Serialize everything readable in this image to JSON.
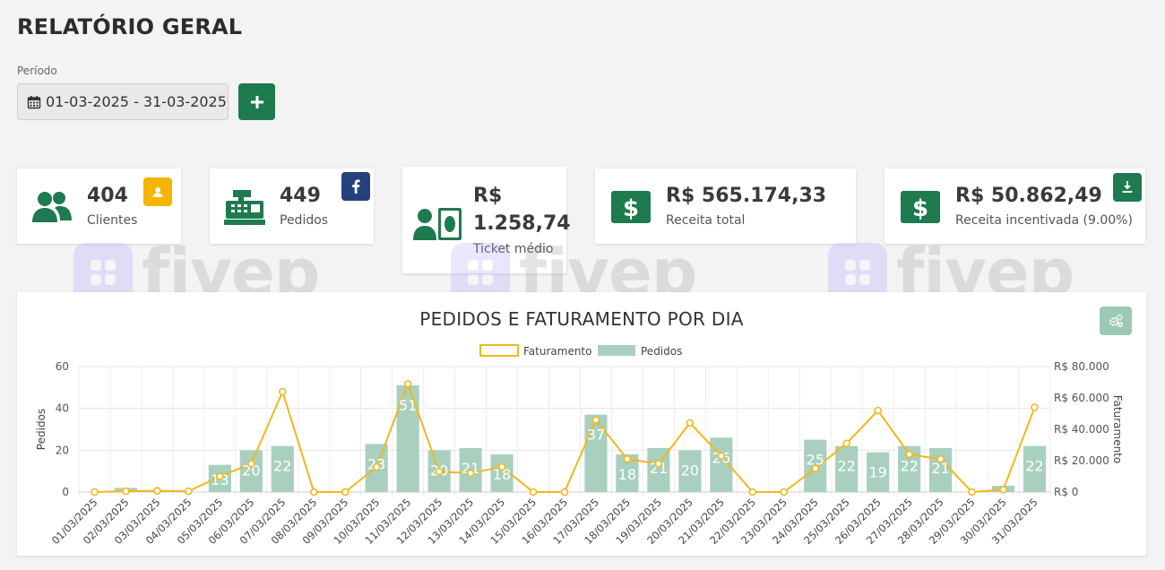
{
  "header": {
    "title": "RELATÓRIO GERAL"
  },
  "filters": {
    "period_label": "Período",
    "period_value": "01-03-2025 - 31-03-2025",
    "add_icon": "plus-icon"
  },
  "cards": {
    "clientes": {
      "value": "404",
      "label": "Clientes",
      "icon": "users-icon",
      "badge_icon": "user-badge-icon",
      "badge_color": "#f5b400"
    },
    "pedidos": {
      "value": "449",
      "label": "Pedidos",
      "icon": "cash-register-icon",
      "badge_icon": "facebook-icon",
      "badge_color": "#25407d"
    },
    "ticket": {
      "value_line1": "R$",
      "value_line2": "1.258,74",
      "label": "Ticket médio",
      "icon": "user-money-icon"
    },
    "receita_total": {
      "value": "R$ 565.174,33",
      "label": "Receita total",
      "icon": "dollar-icon"
    },
    "receita_incentivada": {
      "value": "R$ 50.862,49",
      "label": "Receita incentivada (9.00%)",
      "icon": "dollar-icon",
      "badge_icon": "download-icon"
    }
  },
  "watermark": {
    "text": "fivep"
  },
  "colors": {
    "primary": "#1e7a4f",
    "bar": "#a9d0be",
    "line": "#f0b81c"
  },
  "chart_data": {
    "type": "bar",
    "title": "PEDIDOS E FATURAMENTO POR DIA",
    "legend_position": "top",
    "grid": true,
    "categories": [
      "01/03/2025",
      "02/03/2025",
      "03/03/2025",
      "04/03/2025",
      "05/03/2025",
      "06/03/2025",
      "07/03/2025",
      "08/03/2025",
      "09/03/2025",
      "10/03/2025",
      "11/03/2025",
      "12/03/2025",
      "13/03/2025",
      "14/03/2025",
      "15/03/2025",
      "16/03/2025",
      "17/03/2025",
      "18/03/2025",
      "19/03/2025",
      "20/03/2025",
      "21/03/2025",
      "22/03/2025",
      "23/03/2025",
      "24/03/2025",
      "25/03/2025",
      "26/03/2025",
      "27/03/2025",
      "28/03/2025",
      "29/03/2025",
      "30/03/2025",
      "31/03/2025"
    ],
    "series": [
      {
        "name": "Pedidos",
        "type": "bar",
        "axis": "left",
        "values": [
          0,
          2,
          1,
          0,
          13,
          20,
          22,
          0,
          0,
          23,
          51,
          20,
          21,
          18,
          0,
          0,
          37,
          18,
          21,
          20,
          26,
          0,
          0,
          25,
          22,
          19,
          22,
          21,
          0,
          3,
          22
        ],
        "show_labels": [
          false,
          false,
          false,
          false,
          true,
          true,
          true,
          false,
          false,
          true,
          true,
          true,
          true,
          true,
          false,
          false,
          true,
          true,
          true,
          true,
          true,
          false,
          false,
          true,
          true,
          true,
          true,
          true,
          false,
          false,
          true
        ]
      },
      {
        "name": "Faturamento",
        "type": "line",
        "axis": "right",
        "values": [
          0,
          500,
          800,
          500,
          10000,
          18000,
          64000,
          0,
          0,
          16000,
          69000,
          13000,
          12000,
          16000,
          0,
          0,
          46000,
          21000,
          18000,
          44000,
          23000,
          0,
          0,
          15000,
          31000,
          52000,
          24000,
          21000,
          0,
          1500,
          54000
        ]
      }
    ],
    "ylabel": "Pedidos",
    "y2label": "Faturamento",
    "ylim": [
      0,
      60
    ],
    "y2lim": [
      0,
      80000
    ],
    "yticks": [
      "0",
      "20",
      "40",
      "60"
    ],
    "y2ticks": [
      "R$ 0",
      "R$ 20.000",
      "R$ 40.000",
      "R$ 60.000",
      "R$ 80.000"
    ]
  },
  "chart_actions": {
    "settings_icon": "gears-icon"
  }
}
